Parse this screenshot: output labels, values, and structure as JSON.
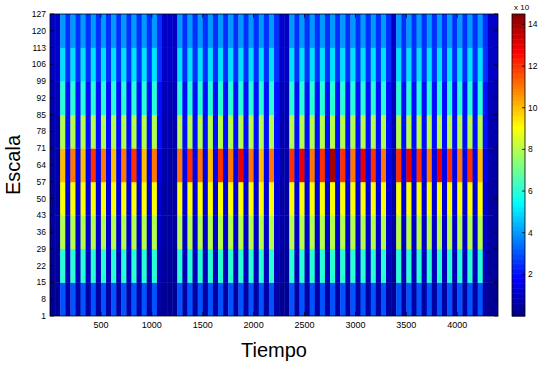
{
  "chart_data": {
    "type": "heatmap",
    "x_label": "Tiempo",
    "y_label": "Escala",
    "xlim": [
      0,
      4400
    ],
    "ylim": [
      1,
      127
    ],
    "xticks": [
      500,
      1000,
      1500,
      2000,
      2500,
      3000,
      3500,
      4000
    ],
    "yticks": [
      1,
      8,
      15,
      22,
      29,
      36,
      43,
      50,
      57,
      64,
      71,
      78,
      85,
      92,
      99,
      106,
      113,
      120,
      127
    ],
    "x_bins": [
      0,
      50,
      100,
      150,
      200,
      250,
      300,
      350,
      400,
      450,
      500,
      550,
      600,
      650,
      700,
      750,
      800,
      850,
      900,
      950,
      1000,
      1050,
      1100,
      1150,
      1200,
      1250,
      1300,
      1350,
      1400,
      1450,
      1500,
      1550,
      1600,
      1650,
      1700,
      1750,
      1800,
      1850,
      1900,
      1950,
      2000,
      2050,
      2100,
      2150,
      2200,
      2250,
      2300,
      2350,
      2400,
      2450,
      2500,
      2550,
      2600,
      2650,
      2700,
      2750,
      2800,
      2850,
      2900,
      2950,
      3000,
      3050,
      3100,
      3150,
      3200,
      3250,
      3300,
      3350,
      3400,
      3450,
      3500,
      3550,
      3600,
      3650,
      3700,
      3750,
      3800,
      3850,
      3900,
      3950,
      4000,
      4050,
      4100,
      4150,
      4200,
      4250,
      4300,
      4350,
      4400
    ],
    "y_bins": [
      1,
      15,
      29,
      43,
      57,
      71,
      85,
      99,
      113,
      127
    ],
    "values": [
      [
        0.3,
        0.3,
        3,
        0.5,
        3,
        0.5,
        3,
        0.5,
        3,
        0.5,
        3,
        0.5,
        3,
        0.5,
        3,
        0.5,
        3,
        0.5,
        3,
        0.5,
        3,
        0.5,
        0.3,
        0.3,
        0.3,
        3,
        0.5,
        3,
        0.5,
        3,
        0.5,
        3,
        0.5,
        3,
        0.5,
        3,
        0.5,
        3,
        0.5,
        3,
        0.5,
        3,
        0.5,
        3,
        0.5,
        0.3,
        0.3,
        3,
        0.5,
        3,
        0.5,
        3,
        0.5,
        3,
        0.5,
        3,
        0.5,
        3,
        0.5,
        3,
        0.5,
        3,
        0.5,
        3,
        0.5,
        3,
        0.5,
        0.3,
        3,
        0.5,
        3,
        0.5,
        3,
        0.5,
        3,
        0.5,
        3,
        0.5,
        3,
        0.5,
        3,
        0.5,
        3,
        0.5,
        3,
        0.5,
        0.3,
        0.3
      ],
      [
        0.4,
        0.4,
        6,
        0.8,
        6,
        0.8,
        6,
        0.8,
        6,
        0.8,
        6,
        0.8,
        6,
        0.8,
        6,
        0.8,
        6,
        0.8,
        6,
        0.8,
        6,
        0.8,
        0.4,
        0.4,
        0.4,
        6,
        0.8,
        6,
        0.8,
        6,
        0.8,
        6,
        0.8,
        6,
        0.8,
        6,
        0.8,
        6,
        0.8,
        6,
        0.8,
        6,
        0.8,
        6,
        0.8,
        0.4,
        0.4,
        6,
        0.8,
        6,
        0.8,
        6,
        0.8,
        6,
        0.8,
        6,
        0.8,
        6,
        0.8,
        6,
        0.8,
        6,
        0.8,
        6,
        0.8,
        6,
        0.8,
        0.4,
        6,
        0.8,
        6,
        0.8,
        6,
        0.8,
        6,
        0.8,
        6,
        0.8,
        6,
        0.8,
        6,
        0.8,
        6,
        0.8,
        6,
        0.8,
        0.4,
        0.4
      ],
      [
        0.5,
        0.5,
        8,
        1,
        8,
        1,
        8,
        1,
        8,
        1,
        8,
        1,
        8,
        1,
        8,
        1,
        8,
        1,
        8,
        1,
        8,
        1,
        0.5,
        0.5,
        0.5,
        8,
        1,
        8,
        1,
        8,
        1,
        8,
        1,
        8,
        1,
        8,
        1,
        8,
        1,
        8,
        1,
        8,
        1,
        8,
        1,
        0.5,
        0.5,
        8,
        1,
        8,
        1,
        8,
        1,
        8,
        1,
        8,
        1,
        8,
        1,
        8,
        1,
        8,
        1,
        8,
        1,
        8,
        1,
        0.5,
        8,
        1,
        8,
        1,
        8,
        1,
        8,
        1,
        8,
        1,
        8,
        1,
        8,
        1,
        8,
        1,
        8,
        1,
        0.5,
        0.5
      ],
      [
        0.5,
        0.5,
        9,
        1.2,
        9,
        1.2,
        9,
        1.2,
        9,
        1.2,
        9,
        1.2,
        9,
        1.2,
        9,
        1.2,
        9,
        1.2,
        9,
        1.2,
        9,
        1.2,
        0.5,
        0.5,
        0.5,
        9,
        1.2,
        9,
        1.2,
        9,
        1.2,
        9,
        1.2,
        9,
        1.2,
        9,
        1.2,
        9,
        1.2,
        9,
        1.2,
        9,
        1.2,
        9,
        1.2,
        0.5,
        0.5,
        9,
        1.2,
        9,
        1.2,
        9,
        1.2,
        9,
        1.2,
        9,
        1.2,
        9,
        1.2,
        9,
        1.2,
        9,
        1.2,
        9,
        1.2,
        9,
        1.2,
        0.5,
        9,
        1.2,
        9,
        1.2,
        9,
        1.2,
        9,
        1.2,
        9,
        1.2,
        9,
        1.2,
        9,
        1.2,
        9,
        1.2,
        9,
        1.2,
        0.5,
        0.5
      ],
      [
        0.6,
        0.6,
        10,
        1.5,
        11,
        1.5,
        10,
        1.5,
        12,
        1.5,
        11,
        1.5,
        10,
        1.5,
        11,
        1.5,
        12,
        1.5,
        10,
        1.5,
        11,
        1.5,
        0.6,
        0.6,
        0.6,
        11,
        1.5,
        12,
        1.5,
        11,
        1.5,
        10,
        1.5,
        12,
        1.5,
        11,
        1.5,
        13,
        1.5,
        11,
        1.5,
        10,
        1.5,
        11,
        1.5,
        0.6,
        0.6,
        12,
        1.5,
        13,
        1.5,
        11,
        1.5,
        12,
        1.5,
        14,
        1.5,
        12,
        1.5,
        11,
        1.5,
        13,
        1.5,
        12,
        1.5,
        11,
        1.5,
        0.6,
        12,
        1.5,
        13,
        1.5,
        12,
        1.5,
        11,
        1.5,
        13,
        1.5,
        12,
        1.5,
        11,
        1.5,
        12,
        1.5,
        10,
        1.5,
        0.6,
        0.6
      ],
      [
        0.7,
        0.7,
        8,
        2,
        8,
        2,
        8,
        2,
        8,
        2,
        8,
        2,
        8,
        2,
        8,
        2,
        8,
        2,
        8,
        2,
        8,
        2,
        0.7,
        0.7,
        0.7,
        8,
        2,
        8,
        2,
        8,
        2,
        8,
        2,
        8,
        2,
        8,
        2,
        8,
        2,
        8,
        2,
        8,
        2,
        8,
        2,
        0.7,
        0.7,
        8,
        2,
        8,
        2,
        8,
        2,
        8,
        2,
        8,
        2,
        8,
        2,
        8,
        2,
        8,
        2,
        8,
        2,
        8,
        2,
        0.7,
        8,
        2,
        8,
        2,
        8,
        2,
        8,
        2,
        8,
        2,
        8,
        2,
        8,
        2,
        8,
        2,
        8,
        2,
        0.7,
        0.7
      ],
      [
        0.8,
        0.8,
        6,
        2,
        6,
        2,
        6,
        2,
        6,
        2,
        6,
        2,
        6,
        2,
        6,
        2,
        6,
        2,
        6,
        2,
        6,
        2,
        0.8,
        0.8,
        0.8,
        6,
        2,
        6,
        2,
        6,
        2,
        6,
        2,
        6,
        2,
        6,
        2,
        6,
        2,
        6,
        2,
        6,
        2,
        6,
        2,
        0.8,
        0.8,
        6,
        2,
        6,
        2,
        6,
        2,
        6,
        2,
        6,
        2,
        6,
        2,
        6,
        2,
        6,
        2,
        6,
        2,
        6,
        2,
        0.8,
        6,
        2,
        6,
        2,
        6,
        2,
        6,
        2,
        6,
        2,
        6,
        2,
        6,
        2,
        6,
        2,
        6,
        2,
        0.8,
        0.8
      ],
      [
        1,
        1,
        5,
        2.5,
        5,
        2.5,
        5,
        2.5,
        5,
        2.5,
        5,
        2.5,
        5,
        2.5,
        5,
        2.5,
        5,
        2.5,
        5,
        2.5,
        5,
        2.5,
        1,
        1,
        1,
        5,
        2.5,
        5,
        2.5,
        5,
        2.5,
        5,
        2.5,
        5,
        2.5,
        5,
        2.5,
        5,
        2.5,
        5,
        2.5,
        5,
        2.5,
        5,
        2.5,
        1,
        1,
        5,
        2.5,
        5,
        2.5,
        5,
        2.5,
        5,
        2.5,
        5,
        2.5,
        5,
        2.5,
        5,
        2.5,
        5,
        2.5,
        5,
        2.5,
        5,
        2.5,
        1,
        5,
        2.5,
        5,
        2.5,
        5,
        2.5,
        5,
        2.5,
        5,
        2.5,
        5,
        2.5,
        5,
        2.5,
        5,
        2.5,
        5,
        2.5,
        1,
        1
      ],
      [
        1,
        1,
        4,
        2.5,
        4,
        2.5,
        4,
        2.5,
        4,
        2.5,
        4,
        2.5,
        4,
        2.5,
        4,
        2.5,
        4,
        2.5,
        4,
        2.5,
        4,
        2.5,
        1,
        1,
        1,
        4,
        2.5,
        4,
        2.5,
        4,
        2.5,
        4,
        2.5,
        4,
        2.5,
        4,
        2.5,
        4,
        2.5,
        4,
        2.5,
        4,
        2.5,
        4,
        2.5,
        1,
        1,
        4,
        2.5,
        4,
        2.5,
        4,
        2.5,
        4,
        2.5,
        4,
        2.5,
        4,
        2.5,
        4,
        2.5,
        4,
        2.5,
        4,
        2.5,
        4,
        2.5,
        1,
        4,
        2.5,
        4,
        2.5,
        4,
        2.5,
        4,
        2.5,
        4,
        2.5,
        4,
        2.5,
        4,
        2.5,
        4,
        2.5,
        4,
        2.5,
        1,
        1
      ]
    ],
    "color_range": [
      0,
      14.5
    ],
    "color_ticks": [
      2,
      4,
      6,
      8,
      10,
      12,
      14
    ],
    "color_label": "x 10"
  }
}
